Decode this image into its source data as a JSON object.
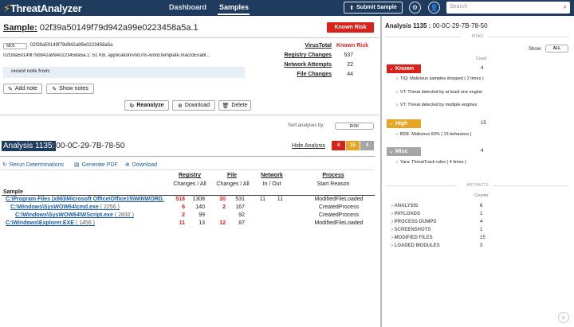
{
  "nav": {
    "logo": "ThreatAnalyzer",
    "dashboard": "Dashboard",
    "samples": "Samples",
    "submit_sample": "Submit Sample",
    "search_placeholder": "Search"
  },
  "sample": {
    "title_label": "Sample:",
    "title_hash": "02f39a50149f79d942a99e0223458a5a.1",
    "known_risk_button": "Known Risk",
    "hash_type": "MD5",
    "hash_value": "02f39a50149f79d942a99e0223458a5a",
    "file_meta": "02f39a50149f79d942a99e0223458a5a.1: 51 KB, application/vnd.ms-word.template.macroEnabl...",
    "note_label": "recent note from:",
    "stats": {
      "virustotal_label": "VirusTotal",
      "virustotal_value": "Known Risk",
      "registry_label": "Registry Changes",
      "registry_value": "537",
      "network_label": "Network Attempts",
      "network_value": "22",
      "file_label": "File Changes",
      "file_value": "44"
    },
    "buttons": {
      "add_note": "Add note",
      "show_notes": "Show notes",
      "reanalyze": "Reanalyze",
      "download": "Download",
      "delete": "Delete"
    },
    "sort_label": "Sort analyses by:",
    "sort_value": "RISK"
  },
  "analysis": {
    "label": "Analysis 1135:",
    "id": "00-0C-29-7B-78-50",
    "hide_link": "Hide Analysis",
    "badges": [
      {
        "value": "4",
        "color": "#d9221c"
      },
      {
        "value": "15",
        "color": "#e8a524"
      },
      {
        "value": "4",
        "color": "#a5a5a5"
      }
    ],
    "actions": {
      "rerun": "Rerun Determinations",
      "pdf": "Generate PDF",
      "download": "Download"
    },
    "columns": {
      "registry": "Registry",
      "registry_sub": "Changes / All",
      "file": "File",
      "file_sub": "Changes / All",
      "network": "Network",
      "network_sub": "In / Out",
      "process": "Process",
      "process_sub": "Start Reason",
      "sample": "Sample"
    },
    "processes": [
      {
        "name": "C:\\Program Files (x86)\\Microsoft Office\\Office15\\WINWORD.",
        "pid": "",
        "reg_changes": "518",
        "reg_all": "1308",
        "file_changes": "30",
        "file_all": "531",
        "net_in": "11",
        "net_out": "11",
        "reason": "ModifiedFileLoaded"
      },
      {
        "name": "C:\\Windows\\SysWOW64\\cmd.exe",
        "pid": "( 2256 )",
        "reg_changes": "6",
        "reg_all": "140",
        "file_changes": "2",
        "file_all": "167",
        "net_in": "",
        "net_out": "",
        "reason": "CreatedProcess"
      },
      {
        "name": "C:\\Windows\\SysWOW64\\WScript.exe",
        "pid": "( 2832 )",
        "reg_changes": "2",
        "reg_all": "99",
        "file_changes": "",
        "file_all": "92",
        "net_in": "",
        "net_out": "",
        "reason": "CreatedProcess"
      },
      {
        "name": "C:\\Windows\\Explorer.EXE",
        "pid": "( 1456 )",
        "reg_changes": "11",
        "reg_all": "13",
        "file_changes": "12",
        "file_all": "87",
        "net_in": "",
        "net_out": "",
        "reason": "ModifiedFileLoaded"
      }
    ]
  },
  "right": {
    "title_label": "Analysis 1135 :",
    "title_id": "00-0C-29-7B-78-50",
    "risks_label": "RISKS",
    "show_label": "Show:",
    "show_value": "ALL",
    "count_label": "Count",
    "groups": [
      {
        "name": "Known",
        "count": "4",
        "color": "#d9221c",
        "items": [
          "TIQ: Malicious samples dropped ( 2 times )",
          "VT: Threat detected by at least one engine",
          "VT: Threat detected by multiple engines"
        ]
      },
      {
        "name": "High",
        "count": "15",
        "color": "#e8a524",
        "items": [
          "BDE: Malicious 90% ( 15 behaviors )"
        ]
      },
      {
        "name": "Misc",
        "count": "4",
        "color": "#a5a5a5",
        "items": [
          "Yara: ThreatTrack rules ( 4 times )"
        ]
      }
    ],
    "artifacts_label": "ARTIFACTS",
    "counter_label": "Counter",
    "artifacts": [
      {
        "name": "ANALYSIS",
        "count": "6"
      },
      {
        "name": "PAYLOADS",
        "count": "1"
      },
      {
        "name": "PROCESS DUMPS",
        "count": "4"
      },
      {
        "name": "SCREENSHOTS",
        "count": "1"
      },
      {
        "name": "MODIFIED FILES",
        "count": "15"
      },
      {
        "name": "LOADED MODULES",
        "count": "3"
      }
    ]
  }
}
